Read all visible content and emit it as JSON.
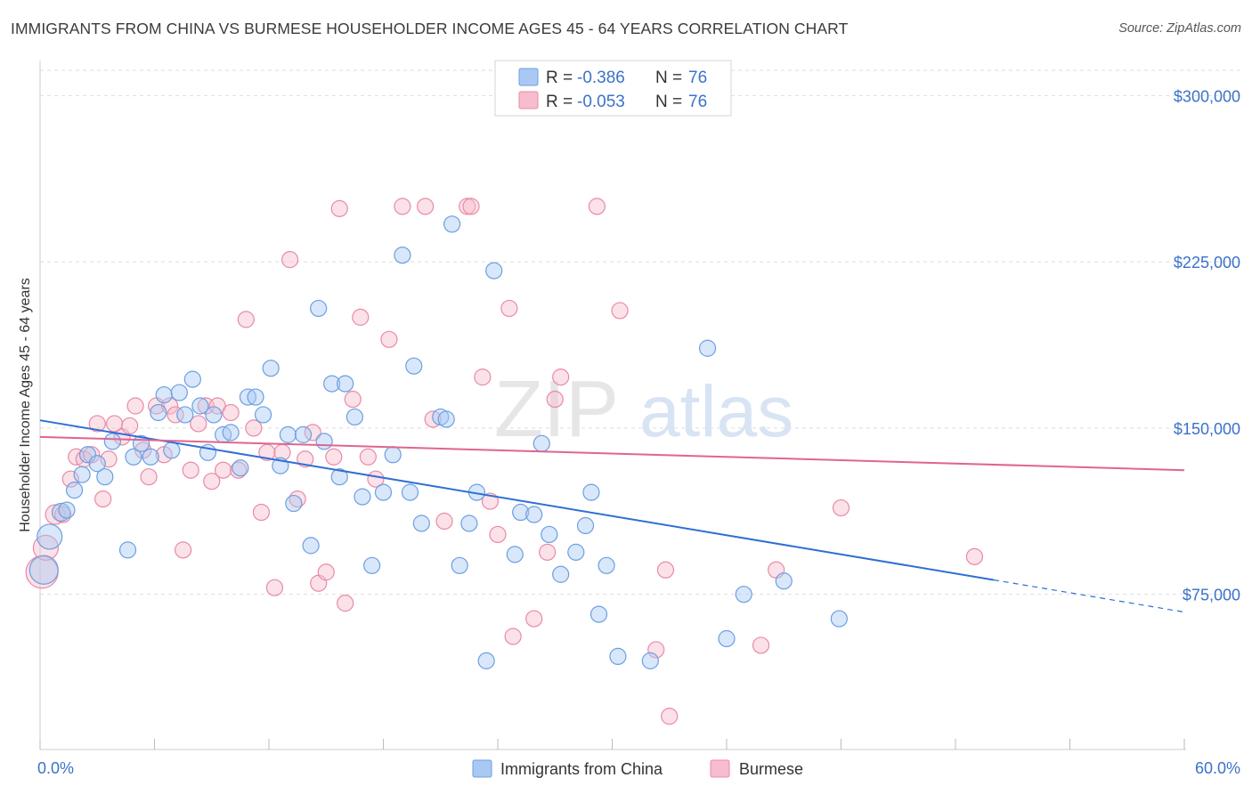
{
  "title": "IMMIGRANTS FROM CHINA VS BURMESE HOUSEHOLDER INCOME AGES 45 - 64 YEARS CORRELATION CHART",
  "source": "Source: ZipAtlas.com",
  "watermark": {
    "zip": "ZIP",
    "atlas": "atlas"
  },
  "colors": {
    "china_fill": "#a9c9f4",
    "china_stroke": "#6c9fe0",
    "china_line": "#2f6fd4",
    "burmese_fill": "#f7bccd",
    "burmese_stroke": "#e98aa6",
    "burmese_line": "#e0658f",
    "axis_label": "#3b72c8",
    "grid": "#dedede"
  },
  "legend": {
    "r_label": "R =",
    "n_label": "N =",
    "rows": [
      {
        "series": "china",
        "r": "-0.386",
        "n": "76"
      },
      {
        "series": "burmese",
        "r": "-0.053",
        "n": "76"
      }
    ]
  },
  "bottom_legend": [
    "Immigrants from China",
    "Burmese"
  ],
  "chart_data": {
    "type": "scatter",
    "title": "IMMIGRANTS FROM CHINA VS BURMESE HOUSEHOLDER INCOME AGES 45 - 64 YEARS CORRELATION CHART",
    "xlabel": "",
    "ylabel": "Householder Income Ages 45 - 64 years",
    "xlim": [
      0,
      60
    ],
    "ylim": [
      5000,
      315000
    ],
    "x_tick_labels": [
      "0.0%",
      "60.0%"
    ],
    "y_ticks": [
      75000,
      150000,
      225000,
      300000
    ],
    "y_tick_labels": [
      "$75,000",
      "$150,000",
      "$225,000",
      "$300,000"
    ],
    "x_minor_ticks": [
      0,
      6,
      12,
      18,
      24,
      30,
      36,
      42,
      48,
      54,
      60
    ],
    "series": [
      {
        "name": "Immigrants from China",
        "trend": {
          "x": [
            0,
            50.0
          ],
          "y": [
            153500,
            81500
          ],
          "dash_to": [
            60,
            67000
          ]
        },
        "points": [
          [
            0.2,
            86000,
            16
          ],
          [
            0.5,
            101000,
            14
          ],
          [
            1.1,
            112000,
            10
          ],
          [
            1.4,
            113000,
            9
          ],
          [
            1.8,
            122000,
            9
          ],
          [
            2.2,
            129000,
            9
          ],
          [
            2.5,
            138000,
            9
          ],
          [
            3.0,
            134000,
            9
          ],
          [
            3.4,
            128000,
            9
          ],
          [
            3.8,
            144000,
            9
          ],
          [
            4.6,
            95000,
            9
          ],
          [
            4.9,
            137000,
            9
          ],
          [
            5.3,
            143000,
            9
          ],
          [
            5.8,
            137000,
            9
          ],
          [
            6.2,
            157000,
            9
          ],
          [
            6.5,
            165000,
            9
          ],
          [
            6.9,
            140000,
            9
          ],
          [
            7.3,
            166000,
            9
          ],
          [
            7.6,
            156000,
            9
          ],
          [
            8.0,
            172000,
            9
          ],
          [
            8.4,
            160000,
            9
          ],
          [
            8.8,
            139000,
            9
          ],
          [
            9.1,
            156000,
            9
          ],
          [
            9.6,
            147000,
            9
          ],
          [
            10.0,
            148000,
            9
          ],
          [
            10.5,
            132000,
            9
          ],
          [
            10.9,
            164000,
            9
          ],
          [
            11.3,
            164000,
            9
          ],
          [
            11.7,
            156000,
            9
          ],
          [
            12.1,
            177000,
            9
          ],
          [
            12.6,
            133000,
            9
          ],
          [
            13.0,
            147000,
            9
          ],
          [
            13.3,
            116000,
            9
          ],
          [
            13.8,
            147000,
            9
          ],
          [
            14.2,
            97000,
            9
          ],
          [
            14.6,
            204000,
            9
          ],
          [
            14.9,
            144000,
            9
          ],
          [
            15.3,
            170000,
            9
          ],
          [
            15.7,
            128000,
            9
          ],
          [
            16.0,
            170000,
            9
          ],
          [
            16.5,
            155000,
            9
          ],
          [
            16.9,
            119000,
            9
          ],
          [
            17.4,
            88000,
            9
          ],
          [
            18.0,
            121000,
            9
          ],
          [
            18.5,
            138000,
            9
          ],
          [
            19.0,
            228000,
            9
          ],
          [
            19.4,
            121000,
            9
          ],
          [
            19.6,
            178000,
            9
          ],
          [
            20.0,
            107000,
            9
          ],
          [
            21.0,
            155000,
            9
          ],
          [
            21.3,
            154000,
            9
          ],
          [
            21.6,
            242000,
            9
          ],
          [
            22.0,
            88000,
            9
          ],
          [
            22.5,
            107000,
            9
          ],
          [
            22.9,
            121000,
            9
          ],
          [
            23.4,
            45000,
            9
          ],
          [
            23.8,
            221000,
            9
          ],
          [
            24.9,
            93000,
            9
          ],
          [
            25.2,
            112000,
            9
          ],
          [
            25.9,
            111000,
            9
          ],
          [
            26.3,
            143000,
            9
          ],
          [
            26.7,
            102000,
            9
          ],
          [
            27.3,
            84000,
            9
          ],
          [
            28.1,
            94000,
            9
          ],
          [
            28.6,
            106000,
            9
          ],
          [
            28.9,
            121000,
            9
          ],
          [
            29.7,
            88000,
            9
          ],
          [
            29.3,
            66000,
            9
          ],
          [
            30.3,
            47000,
            9
          ],
          [
            32.0,
            45000,
            9
          ],
          [
            35.0,
            186000,
            9
          ],
          [
            36.0,
            55000,
            9
          ],
          [
            36.9,
            75000,
            9
          ],
          [
            39.0,
            81000,
            9
          ],
          [
            41.9,
            64000,
            9
          ],
          [
            40.5,
            186000,
            0
          ]
        ]
      },
      {
        "name": "Burmese",
        "trend": {
          "x": [
            0,
            60
          ],
          "y": [
            146000,
            131000
          ]
        },
        "points": [
          [
            0.1,
            85000,
            18
          ],
          [
            0.3,
            96000,
            14
          ],
          [
            0.8,
            111000,
            11
          ],
          [
            1.2,
            111000,
            9
          ],
          [
            1.6,
            127000,
            9
          ],
          [
            1.9,
            137000,
            9
          ],
          [
            2.3,
            136000,
            9
          ],
          [
            2.7,
            138000,
            9
          ],
          [
            3.0,
            152000,
            9
          ],
          [
            3.3,
            118000,
            9
          ],
          [
            3.6,
            136000,
            9
          ],
          [
            3.9,
            152000,
            9
          ],
          [
            4.3,
            146000,
            9
          ],
          [
            4.7,
            151000,
            9
          ],
          [
            5.0,
            160000,
            9
          ],
          [
            5.4,
            140000,
            9
          ],
          [
            5.7,
            128000,
            9
          ],
          [
            6.1,
            160000,
            9
          ],
          [
            6.5,
            138000,
            9
          ],
          [
            6.8,
            160000,
            9
          ],
          [
            7.1,
            156000,
            9
          ],
          [
            7.5,
            95000,
            9
          ],
          [
            7.9,
            131000,
            9
          ],
          [
            8.3,
            152000,
            9
          ],
          [
            8.7,
            160000,
            9
          ],
          [
            9.0,
            126000,
            9
          ],
          [
            9.3,
            160000,
            9
          ],
          [
            9.6,
            131000,
            9
          ],
          [
            10.0,
            157000,
            9
          ],
          [
            10.4,
            131000,
            9
          ],
          [
            10.8,
            199000,
            9
          ],
          [
            11.2,
            150000,
            9
          ],
          [
            11.6,
            112000,
            9
          ],
          [
            11.9,
            139000,
            9
          ],
          [
            12.3,
            78000,
            9
          ],
          [
            12.7,
            139000,
            9
          ],
          [
            13.1,
            226000,
            9
          ],
          [
            13.5,
            118000,
            9
          ],
          [
            13.9,
            136000,
            9
          ],
          [
            14.3,
            148000,
            9
          ],
          [
            14.6,
            80000,
            9
          ],
          [
            15.0,
            85000,
            9
          ],
          [
            15.4,
            137000,
            9
          ],
          [
            15.7,
            249000,
            9
          ],
          [
            16.0,
            71000,
            9
          ],
          [
            16.4,
            163000,
            9
          ],
          [
            16.8,
            200000,
            9
          ],
          [
            17.2,
            137000,
            9
          ],
          [
            17.6,
            127000,
            9
          ],
          [
            18.3,
            190000,
            9
          ],
          [
            19.0,
            250000,
            9
          ],
          [
            20.2,
            250000,
            9
          ],
          [
            20.6,
            154000,
            9
          ],
          [
            21.2,
            108000,
            9
          ],
          [
            22.4,
            250000,
            9
          ],
          [
            22.6,
            250000,
            9
          ],
          [
            23.2,
            173000,
            9
          ],
          [
            23.6,
            117000,
            9
          ],
          [
            24.0,
            102000,
            9
          ],
          [
            24.6,
            204000,
            9
          ],
          [
            24.8,
            56000,
            9
          ],
          [
            25.9,
            64000,
            9
          ],
          [
            26.6,
            94000,
            9
          ],
          [
            27.0,
            163000,
            9
          ],
          [
            27.3,
            173000,
            9
          ],
          [
            29.2,
            250000,
            9
          ],
          [
            30.4,
            203000,
            9
          ],
          [
            32.3,
            50000,
            9
          ],
          [
            32.8,
            86000,
            9
          ],
          [
            33.0,
            20000,
            9
          ],
          [
            37.8,
            52000,
            9
          ],
          [
            38.6,
            86000,
            9
          ],
          [
            42.0,
            114000,
            9
          ],
          [
            49.0,
            92000,
            9
          ],
          [
            3.1,
            170000,
            0
          ],
          [
            5.3,
            155000,
            0
          ]
        ]
      }
    ]
  }
}
